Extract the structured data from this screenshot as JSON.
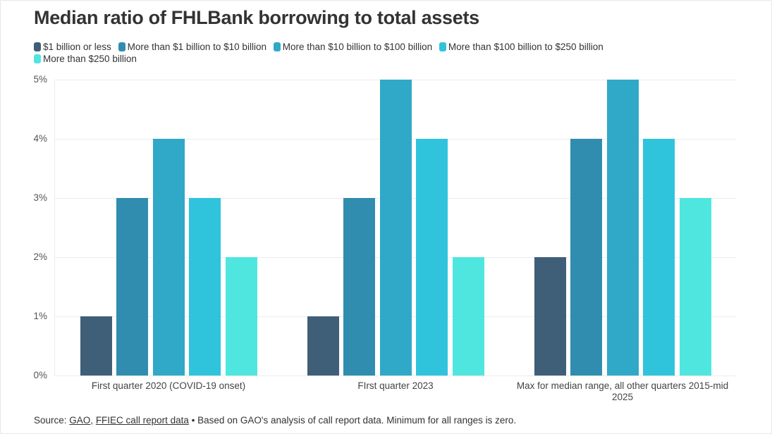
{
  "title": "Median ratio of FHLBank borrowing to total assets",
  "legend": [
    {
      "label": "$1 billion or less",
      "color": "#3f5e78"
    },
    {
      "label": "More than $1 billion to $10 billion",
      "color": "#318daf"
    },
    {
      "label": "More than $10 billion to $100 billion",
      "color": "#30a8c8"
    },
    {
      "label": "More than $100 billion to $250 billion",
      "color": "#30c3dc"
    },
    {
      "label": "More than $250 billion",
      "color": "#4fe6e0"
    }
  ],
  "footer": {
    "prefix": "Source: ",
    "link1": "GAO",
    "sep": ", ",
    "link2": "FFIEC call report data",
    "note": " • Based on GAO's analysis of call report data. Minimum for all ranges is zero."
  },
  "chart_data": {
    "type": "bar",
    "title": "Median ratio of FHLBank borrowing to total assets",
    "xlabel": "",
    "ylabel": "",
    "ylim": [
      0,
      5
    ],
    "yticks": [
      "0%",
      "1%",
      "2%",
      "3%",
      "4%",
      "5%"
    ],
    "grid": true,
    "legend_position": "top",
    "categories": [
      "First quarter 2020 (COVID-19 onset)",
      "FIrst quarter 2023",
      "Max for median range, all other quarters 2015-mid 2025"
    ],
    "series": [
      {
        "name": "$1 billion or less",
        "values": [
          1,
          1,
          2
        ]
      },
      {
        "name": "More than $1 billion to $10 billion",
        "values": [
          3,
          3,
          4
        ]
      },
      {
        "name": "More than $10 billion to $100 billion",
        "values": [
          4,
          5,
          5
        ]
      },
      {
        "name": "More than $100 billion to $250 billion",
        "values": [
          3,
          4,
          4
        ]
      },
      {
        "name": "More than $250 billion",
        "values": [
          2,
          2,
          3
        ]
      }
    ],
    "annotations": [
      "Source: GAO, FFIEC call report data • Based on GAO's analysis of call report data. Minimum for all ranges is zero."
    ]
  }
}
